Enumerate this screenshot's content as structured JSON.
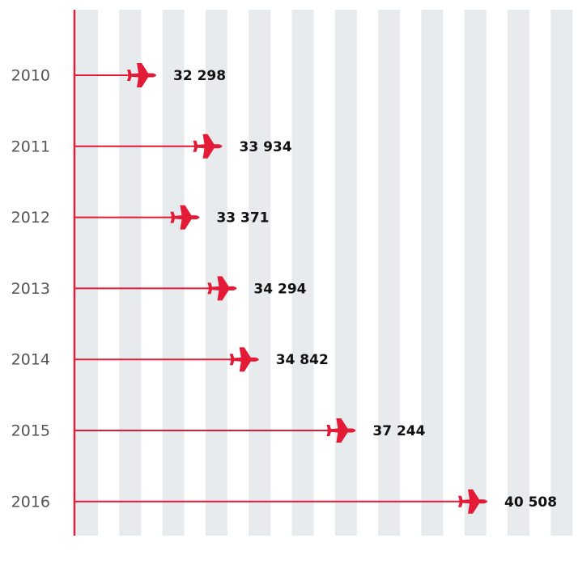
{
  "chart_data": {
    "type": "plane-bar",
    "categories": [
      "2010",
      "2011",
      "2012",
      "2013",
      "2014",
      "2015",
      "2016"
    ],
    "values": [
      32298,
      33934,
      33371,
      34294,
      34842,
      37244,
      40508
    ],
    "value_labels": [
      "32 298",
      "33 934",
      "33 371",
      "34 294",
      "34 842",
      "37 244",
      "40 508"
    ],
    "color": "#e31b37"
  }
}
